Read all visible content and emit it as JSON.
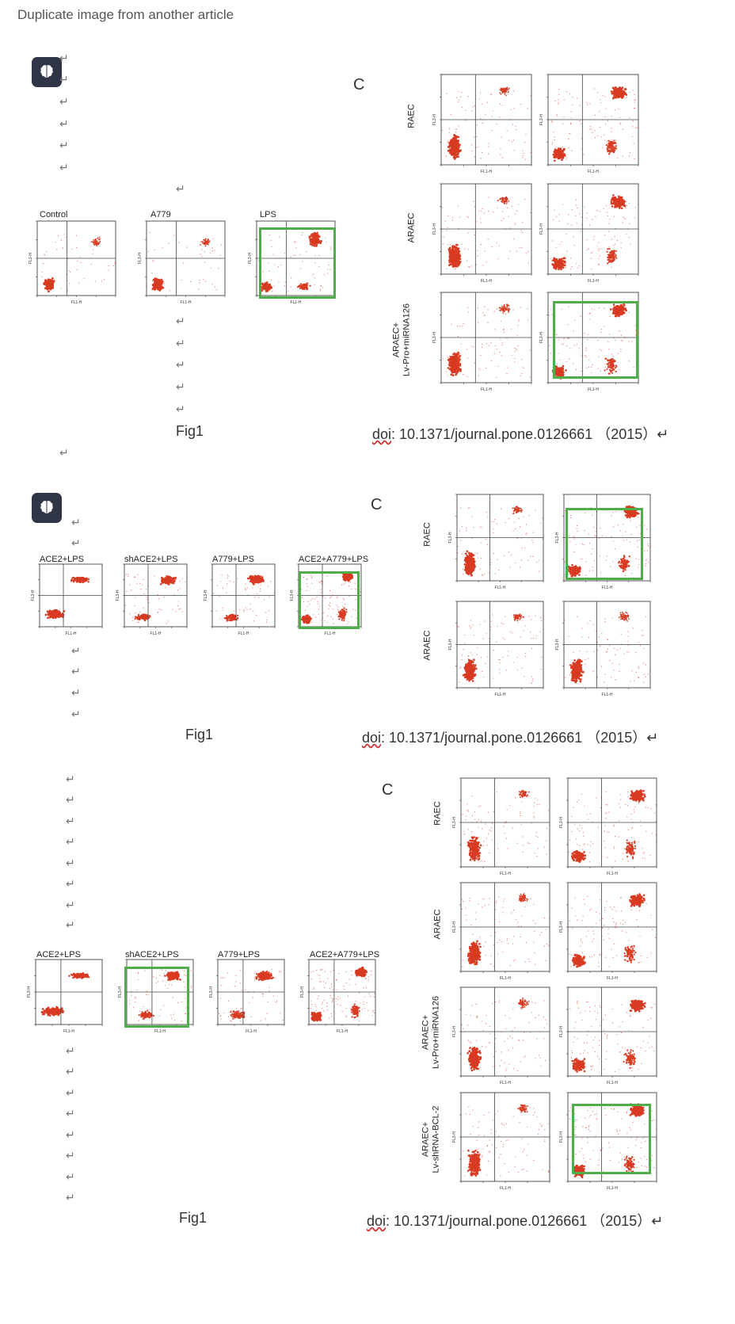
{
  "heading": "Duplicate image from another article",
  "return_mark": "↵",
  "panel_label": "C",
  "axis_labels": {
    "x": "FL1-H",
    "y": "FL3-H"
  },
  "set1": {
    "titles": [
      "Control",
      "A779",
      "LPS"
    ],
    "row_labels": [
      "RAEC",
      "ARAEC",
      "ARAEC+\nLv-Pro+miRNA126"
    ],
    "caption_left": "Fig1",
    "doi_prefix": "doi",
    "caption_right": ": 10.1371/journal.pone.0126661 （2015）↵"
  },
  "set2": {
    "titles": [
      "ACE2+LPS",
      "shACE2+LPS",
      "A779+LPS",
      "ACE2+A779+LPS"
    ],
    "row_labels": [
      "RAEC",
      "ARAEC"
    ],
    "caption_left": "Fig1",
    "doi_prefix": "doi",
    "caption_right": ":  10.1371/journal.pone.0126661 （2015）↵"
  },
  "set3": {
    "titles": [
      "ACE2+LPS",
      "shACE2+LPS",
      "A779+LPS",
      "ACE2+A779+LPS"
    ],
    "row_labels": [
      "RAEC",
      "ARAEC",
      "ARAEC+\nLv-Pro+miRNA126",
      "ARAEC+\nLv-shRNA-BCL-2"
    ],
    "caption_left": "Fig1",
    "doi_prefix": "doi",
    "caption_right": ": 10.1371/journal.pone.0126661 （2015）↵"
  },
  "colors": {
    "dots": "#d83a22",
    "highlight": "#4fae4a",
    "badge": "#2f3447"
  }
}
